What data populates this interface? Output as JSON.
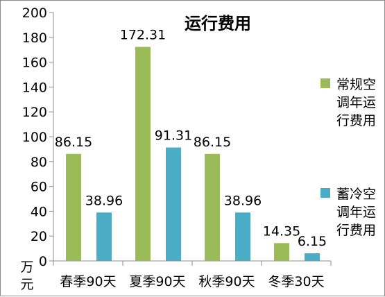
{
  "chart_data": {
    "type": "bar",
    "title": "运行费用",
    "ylabel": "万元",
    "xlabel": "",
    "ylim": [
      0,
      200
    ],
    "yticks": [
      0,
      20,
      40,
      60,
      80,
      100,
      120,
      140,
      160,
      180,
      200
    ],
    "grid": false,
    "legend_position": "right",
    "categories": [
      "春季90天",
      "夏季90天",
      "秋季90天",
      "冬季30天"
    ],
    "series": [
      {
        "name": "常规空调年运行费用",
        "color": "#9bbb59",
        "values": [
          86.15,
          172.31,
          86.15,
          14.35
        ],
        "labels": [
          "86.15",
          "172.31",
          "86.15",
          "14.35"
        ]
      },
      {
        "name": "蓄冷空调年运行费用",
        "color": "#4bacc6",
        "values": [
          38.96,
          91.31,
          38.96,
          6.15
        ],
        "labels": [
          "38.96",
          "91.31",
          "38.96",
          "6.15"
        ]
      }
    ]
  }
}
